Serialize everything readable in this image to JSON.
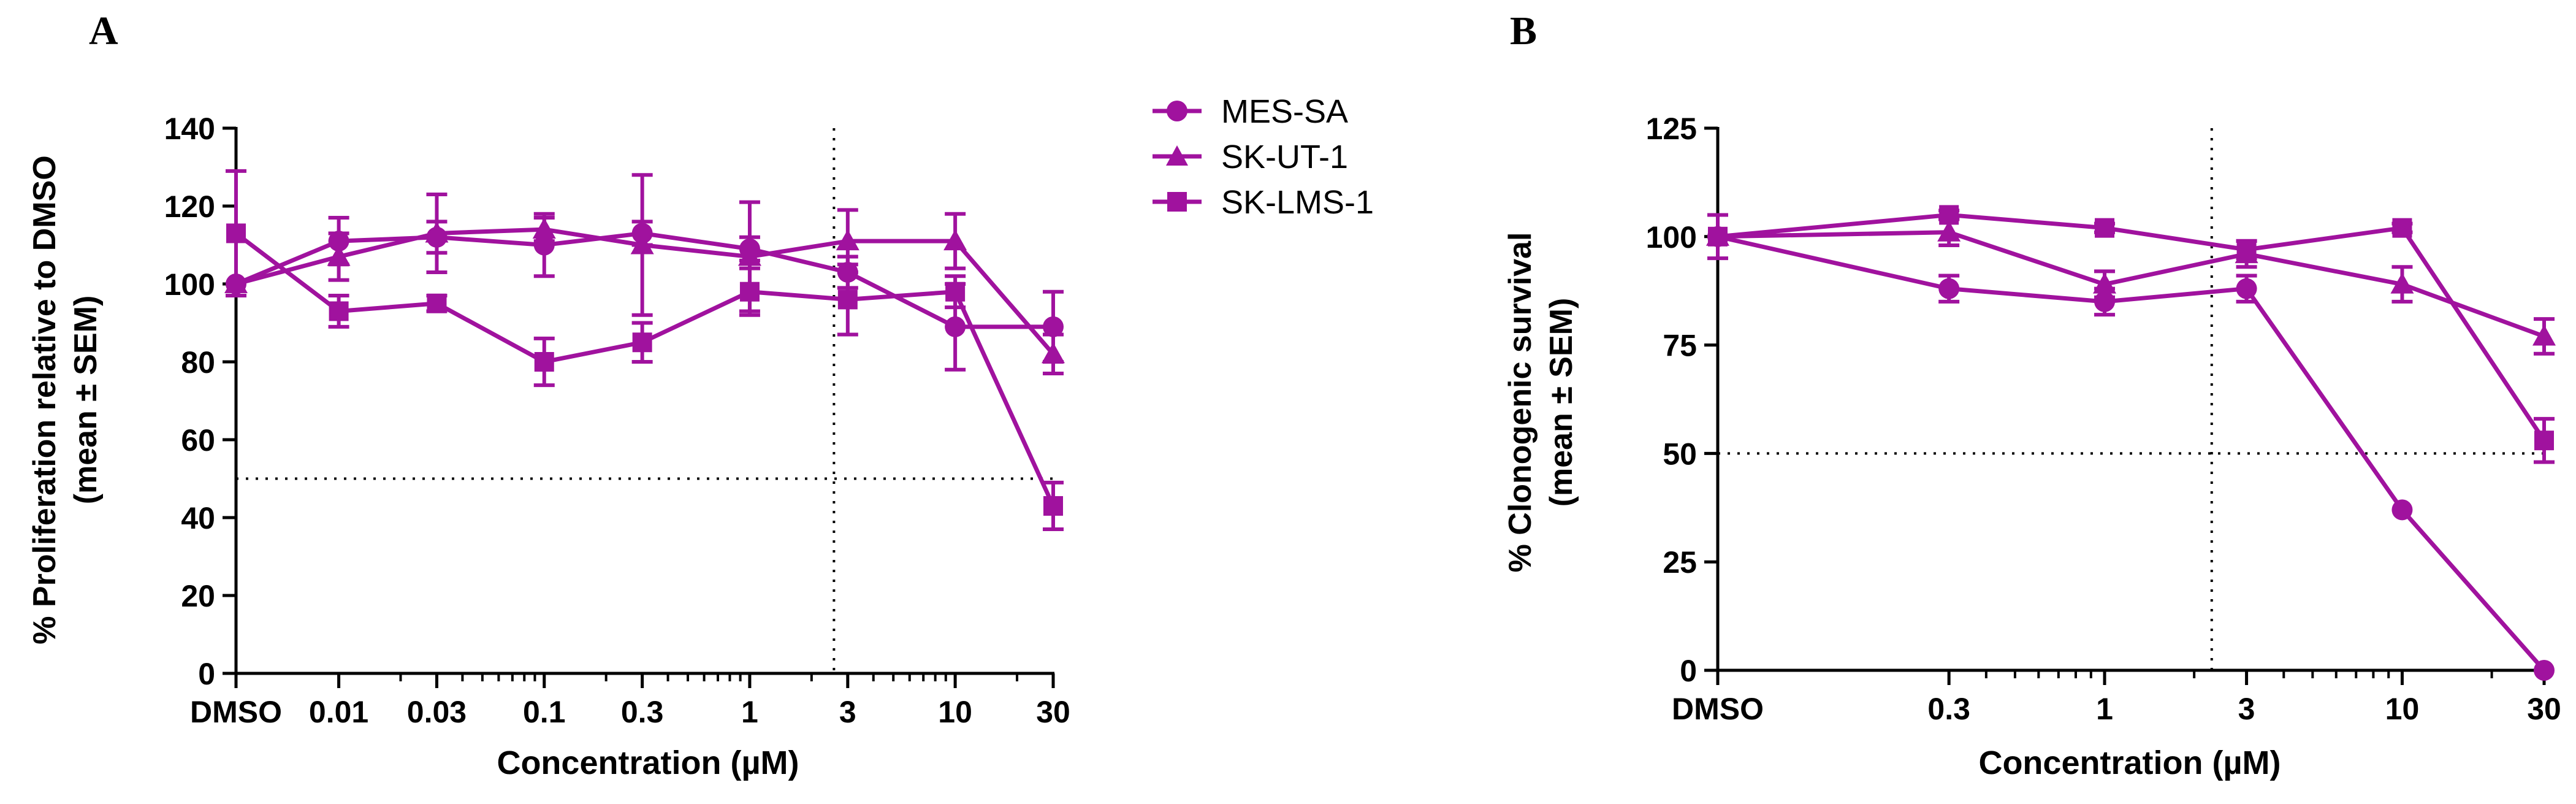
{
  "colors": {
    "series": "#a0129e",
    "axis": "#000000",
    "background": "#ffffff"
  },
  "legend": {
    "items": [
      {
        "label": "MES-SA",
        "marker": "circle"
      },
      {
        "label": "SK-UT-1",
        "marker": "triangle"
      },
      {
        "label": "SK-LMS-1",
        "marker": "square"
      }
    ]
  },
  "chart_data": [
    {
      "panel_label": "A",
      "type": "line",
      "xlabel": "Concentration (µM)",
      "ylabel_line1": "% Proliferation relative to DMSO",
      "ylabel_line2": "(mean ± SEM)",
      "x_scale": "log with DMSO baseline",
      "categories": [
        "DMSO",
        "0.01",
        "0.03",
        "0.1",
        "0.3",
        "1",
        "3",
        "10",
        "30"
      ],
      "category_log10": [
        -2.5,
        -2,
        -1.523,
        -1,
        -0.523,
        0,
        0.477,
        1,
        1.477
      ],
      "yticks": [
        "0",
        "20",
        "40",
        "60",
        "80",
        "100",
        "120",
        "140"
      ],
      "ylim": [
        0,
        140
      ],
      "threshold_y": 50,
      "threshold_x_log10": 0.41,
      "series": [
        {
          "name": "MES-SA",
          "marker": "circle",
          "values": [
            100,
            111,
            112,
            110,
            113,
            109,
            103,
            89,
            89
          ],
          "errors": [
            0,
            6,
            4,
            8,
            3,
            3,
            4,
            11,
            9
          ]
        },
        {
          "name": "SK-UT-1",
          "marker": "triangle",
          "values": [
            100,
            107,
            113,
            114,
            110,
            107,
            111,
            111,
            82
          ],
          "errors": [
            0,
            6,
            10,
            3,
            18,
            14,
            8,
            7,
            5
          ]
        },
        {
          "name": "SK-LMS-1",
          "marker": "square",
          "values": [
            113,
            93,
            95,
            80,
            85,
            98,
            96,
            98,
            43
          ],
          "errors": [
            16,
            4,
            2,
            6,
            5,
            6,
            9,
            4,
            6
          ]
        }
      ]
    },
    {
      "panel_label": "B",
      "type": "line",
      "xlabel": "Concentration (µM)",
      "ylabel_line1": "% Clonogenic survival",
      "ylabel_line2": "(mean ± SEM)",
      "x_scale": "log with DMSO baseline",
      "categories": [
        "DMSO",
        "0.3",
        "1",
        "3",
        "10",
        "30"
      ],
      "category_log10": [
        -1.3,
        -0.523,
        0,
        0.477,
        1,
        1.477
      ],
      "yticks": [
        "0",
        "25",
        "50",
        "75",
        "100",
        "125"
      ],
      "ylim": [
        0,
        125
      ],
      "threshold_y": 50,
      "threshold_x_log10": 0.36,
      "series": [
        {
          "name": "MES-SA",
          "marker": "circle",
          "values": [
            100,
            88,
            85,
            88,
            37,
            0
          ],
          "errors": [
            0,
            3,
            3,
            3,
            0,
            0
          ]
        },
        {
          "name": "SK-UT-1",
          "marker": "triangle",
          "values": [
            100,
            101,
            89,
            96,
            89,
            77
          ],
          "errors": [
            0,
            3,
            3,
            3,
            4,
            4
          ]
        },
        {
          "name": "SK-LMS-1",
          "marker": "square",
          "values": [
            100,
            105,
            102,
            97,
            102,
            53
          ],
          "errors": [
            5,
            1,
            1,
            2,
            1,
            5
          ]
        }
      ]
    }
  ]
}
